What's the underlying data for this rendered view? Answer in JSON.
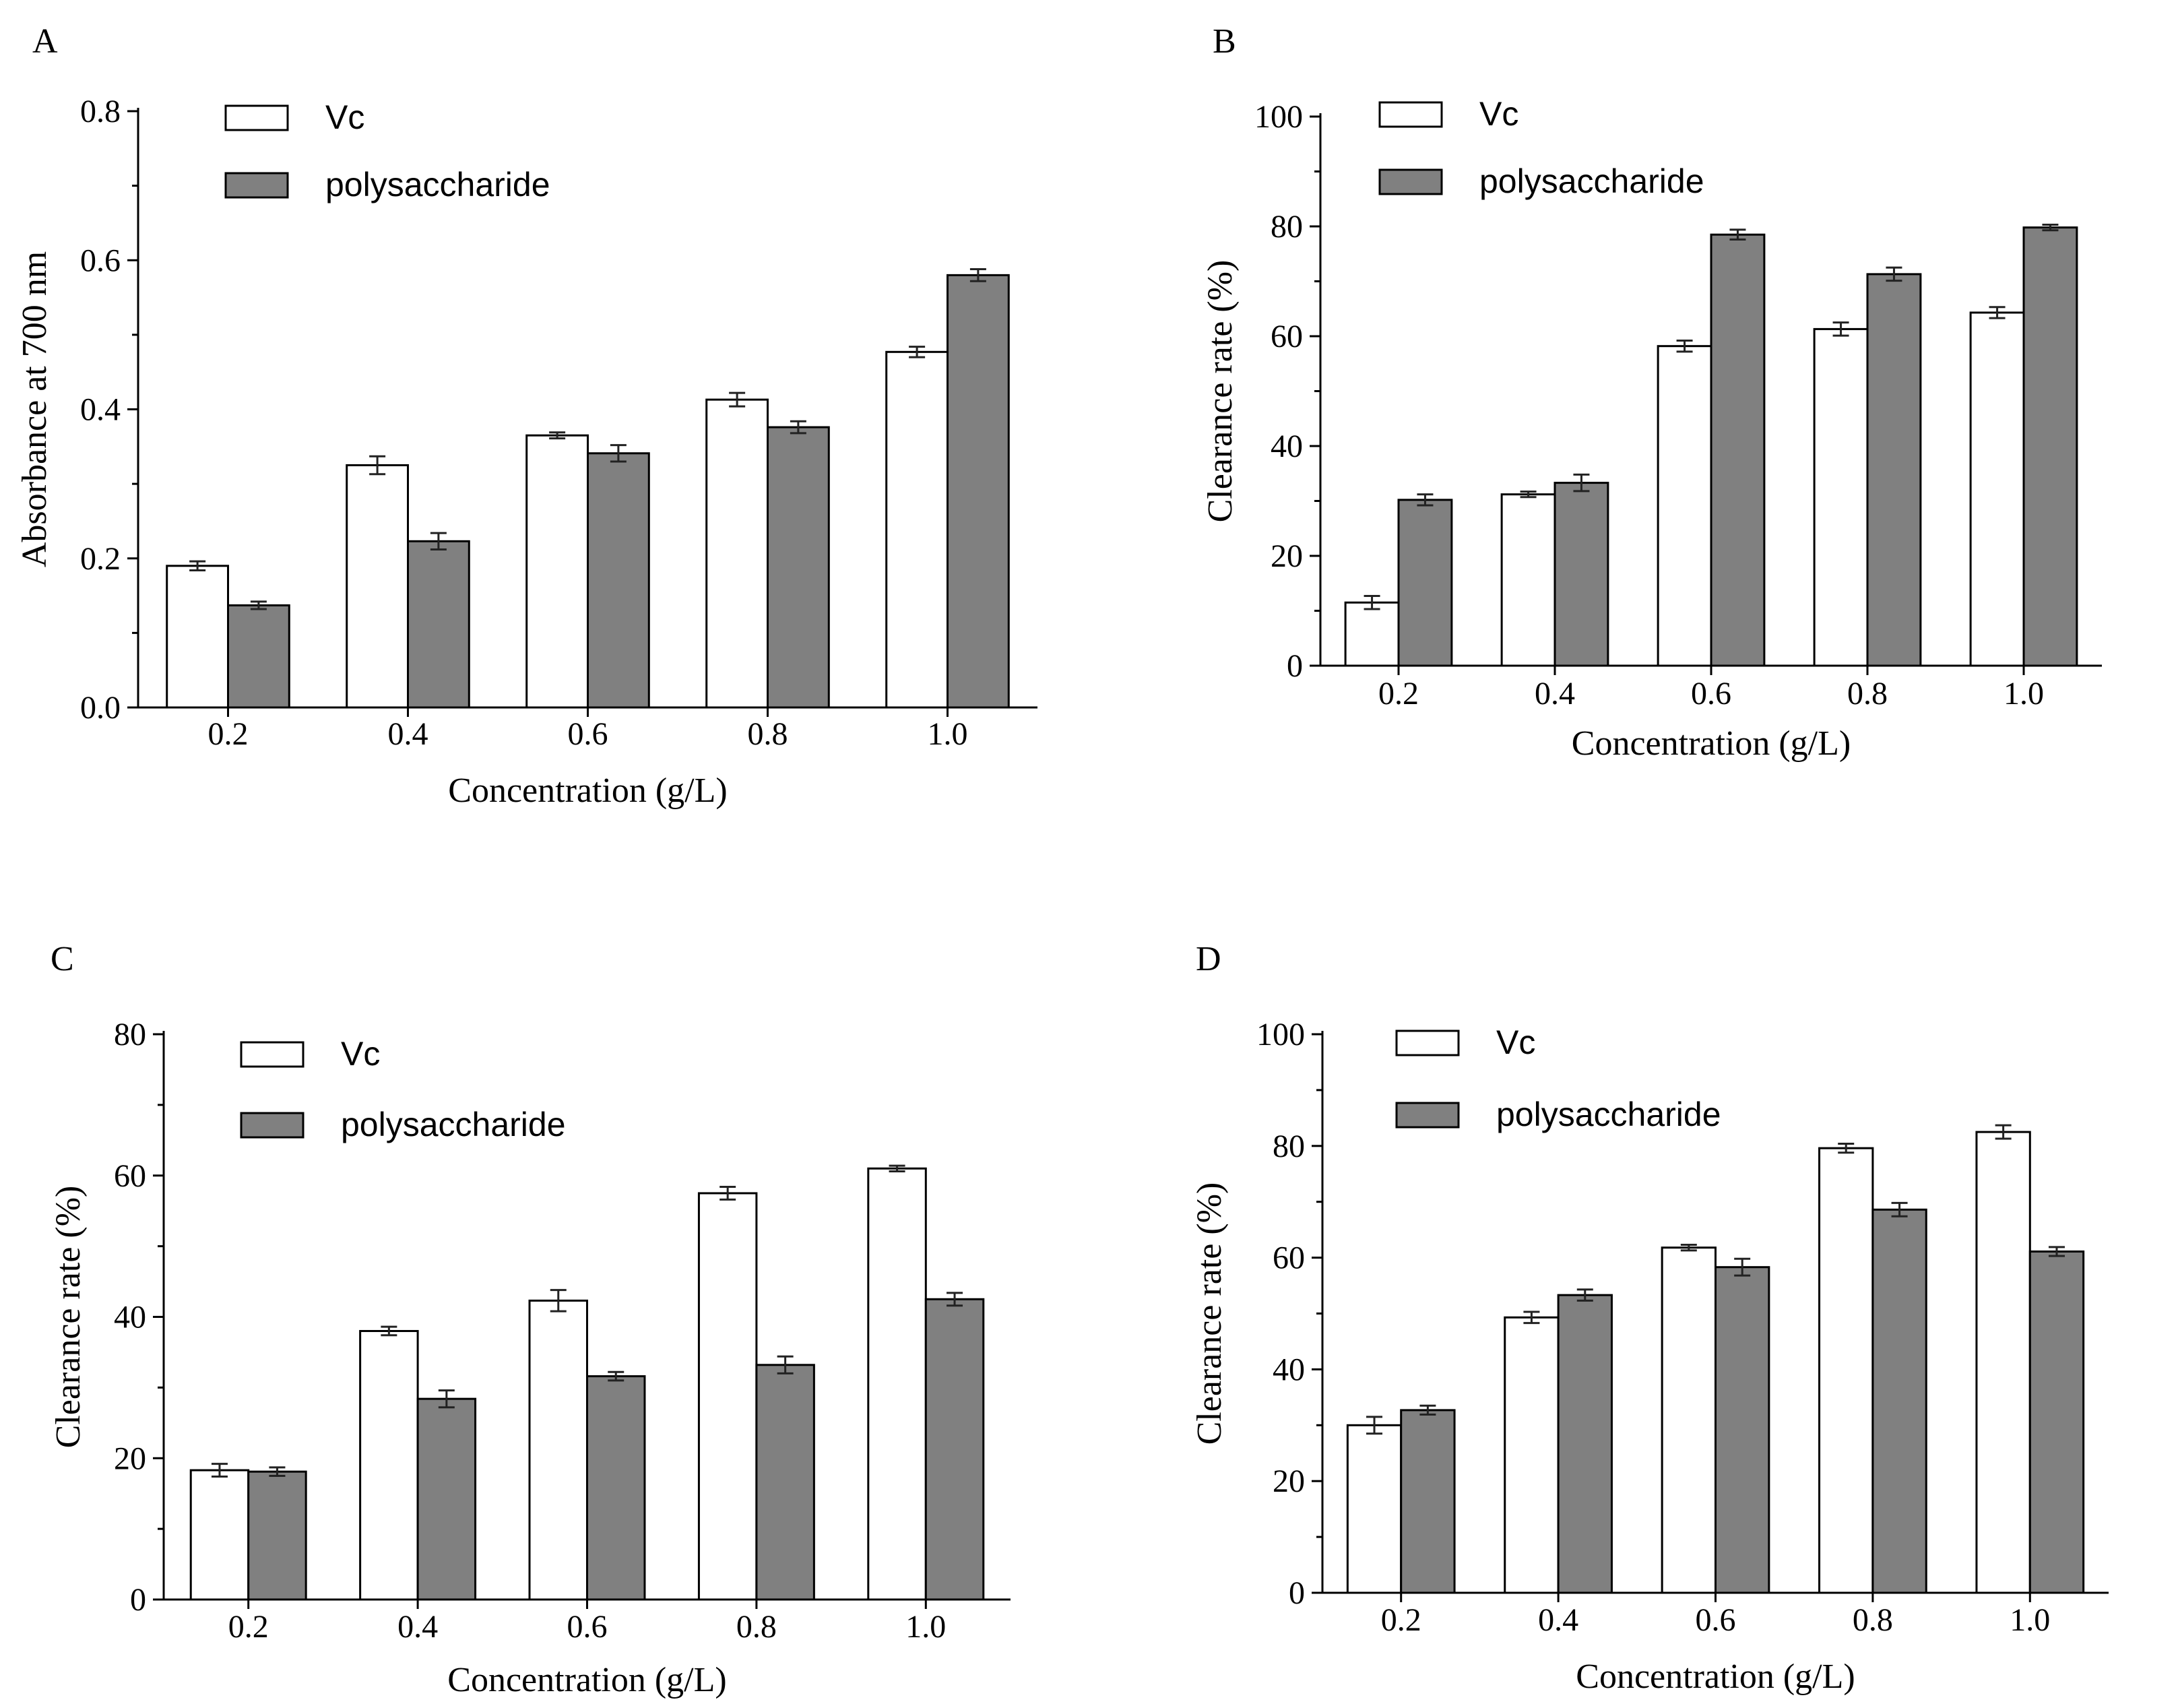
{
  "chart_data": [
    {
      "panel": "A",
      "type": "bar",
      "categories": [
        "0.2",
        "0.4",
        "0.6",
        "0.8",
        "1.0"
      ],
      "series": [
        {
          "name": "Vc",
          "values": [
            0.19,
            0.325,
            0.365,
            0.413,
            0.477
          ],
          "errors": [
            0.006,
            0.012,
            0.004,
            0.009,
            0.007
          ]
        },
        {
          "name": "polysaccharide",
          "values": [
            0.137,
            0.223,
            0.341,
            0.376,
            0.58
          ],
          "errors": [
            0.005,
            0.011,
            0.011,
            0.008,
            0.008
          ]
        }
      ],
      "xlabel": "Concentration (g/L)",
      "ylabel": "Absorbance at 700 nm",
      "ylim": [
        0,
        0.8
      ],
      "yticks": [
        "0.0",
        "0.2",
        "0.4",
        "0.6",
        "0.8"
      ],
      "legend_position": "top-left",
      "grid": false
    },
    {
      "panel": "B",
      "type": "bar",
      "categories": [
        "0.2",
        "0.4",
        "0.6",
        "0.8",
        "1.0"
      ],
      "series": [
        {
          "name": "Vc",
          "values": [
            11.5,
            31.2,
            58.2,
            61.3,
            64.3
          ],
          "errors": [
            1.2,
            0.5,
            1.0,
            1.2,
            1.0
          ]
        },
        {
          "name": "polysaccharide",
          "values": [
            30.2,
            33.3,
            78.5,
            71.3,
            79.8
          ],
          "errors": [
            1.0,
            1.5,
            0.9,
            1.2,
            0.5
          ]
        }
      ],
      "xlabel": "Concentration (g/L)",
      "ylabel": "Clearance rate (%)",
      "ylim": [
        0,
        100
      ],
      "yticks": [
        "0",
        "20",
        "40",
        "60",
        "80",
        "100"
      ],
      "legend_position": "top-left",
      "grid": false
    },
    {
      "panel": "C",
      "type": "bar",
      "categories": [
        "0.2",
        "0.4",
        "0.6",
        "0.8",
        "1.0"
      ],
      "series": [
        {
          "name": "Vc",
          "values": [
            18.3,
            38.0,
            42.3,
            57.5,
            61.0
          ],
          "errors": [
            0.9,
            0.6,
            1.5,
            0.9,
            0.4
          ]
        },
        {
          "name": "polysaccharide",
          "values": [
            18.1,
            28.4,
            31.6,
            33.2,
            42.5
          ],
          "errors": [
            0.6,
            1.2,
            0.6,
            1.2,
            0.9
          ]
        }
      ],
      "xlabel": "Concentration (g/L)",
      "ylabel": "Clearance rate (%)",
      "ylim": [
        0,
        80
      ],
      "yticks": [
        "0",
        "20",
        "40",
        "60",
        "80"
      ],
      "legend_position": "top-left",
      "grid": false
    },
    {
      "panel": "D",
      "type": "bar",
      "categories": [
        "0.2",
        "0.4",
        "0.6",
        "0.8",
        "1.0"
      ],
      "series": [
        {
          "name": "Vc",
          "values": [
            30.0,
            49.3,
            61.8,
            79.6,
            82.5
          ],
          "errors": [
            1.5,
            1.0,
            0.5,
            0.8,
            1.2
          ]
        },
        {
          "name": "polysaccharide",
          "values": [
            32.7,
            53.3,
            58.3,
            68.6,
            61.1
          ],
          "errors": [
            0.8,
            1.0,
            1.5,
            1.2,
            0.8
          ]
        }
      ],
      "xlabel": "Concentration (g/L)",
      "ylabel": "Clearance rate (%)",
      "ylim": [
        0,
        100
      ],
      "yticks": [
        "0",
        "20",
        "40",
        "60",
        "80",
        "100"
      ],
      "legend_position": "top-left",
      "grid": false
    }
  ],
  "colors": {
    "vc_fill": "#ffffff",
    "polysaccharide_fill": "#808080",
    "axis": "#000000"
  }
}
